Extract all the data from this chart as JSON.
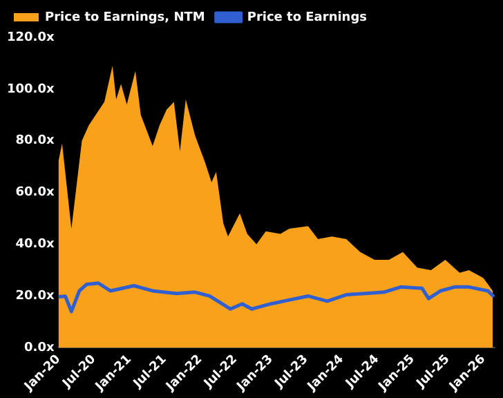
{
  "chart_data": {
    "type": "area",
    "legend": "top left",
    "grid": false,
    "marker": "none",
    "xlim": [
      "2020-01-01",
      "2026-03-01"
    ],
    "xticks": [
      {
        "value": "2020-01-01",
        "label": "Jan-20"
      },
      {
        "value": "2020-07-01",
        "label": "Jul-20"
      },
      {
        "value": "2021-01-01",
        "label": "Jan-21"
      },
      {
        "value": "2021-07-01",
        "label": "Jul-21"
      },
      {
        "value": "2022-01-01",
        "label": "Jan-22"
      },
      {
        "value": "2022-07-01",
        "label": "Jul-22"
      },
      {
        "value": "2023-01-01",
        "label": "Jan-23"
      },
      {
        "value": "2023-07-01",
        "label": "Jul-23"
      },
      {
        "value": "2024-01-01",
        "label": "Jan-24"
      },
      {
        "value": "2024-07-01",
        "label": "Jul-24"
      },
      {
        "value": "2025-01-01",
        "label": "Jan-25"
      },
      {
        "value": "2025-07-01",
        "label": "Jul-25"
      },
      {
        "value": "2026-01-01",
        "label": "Jan-26"
      }
    ],
    "ylim": [
      0,
      120
    ],
    "yticks": [
      {
        "value": 0,
        "label": "0.0x"
      },
      {
        "value": 20,
        "label": "20.0x"
      },
      {
        "value": 40,
        "label": "40.0x"
      },
      {
        "value": 60,
        "label": "60.0x"
      },
      {
        "value": 80,
        "label": "80.0x"
      },
      {
        "value": 100,
        "label": "100.0x"
      },
      {
        "value": 120,
        "label": "120.0x"
      }
    ],
    "series": [
      {
        "name": "Price to Earnings, NTM",
        "type": "area",
        "color": "#f9a11b",
        "x": [
          "2020-01-01",
          "2020-01-20",
          "2020-03-08",
          "2020-05-01",
          "2020-06-06",
          "2020-08-25",
          "2020-10-06",
          "2020-10-25",
          "2020-11-19",
          "2020-12-19",
          "2021-02-01",
          "2021-03-01",
          "2021-05-01",
          "2021-06-06",
          "2021-07-12",
          "2021-08-19",
          "2021-09-19",
          "2021-10-19",
          "2021-12-06",
          "2022-01-25",
          "2022-03-01",
          "2022-03-25",
          "2022-05-01",
          "2022-05-25",
          "2022-07-25",
          "2022-09-01",
          "2022-10-19",
          "2022-12-06",
          "2023-02-19",
          "2023-04-06",
          "2023-07-12",
          "2023-09-01",
          "2023-11-12",
          "2024-01-25",
          "2024-04-06",
          "2024-06-19",
          "2024-09-01",
          "2024-11-12",
          "2025-01-25",
          "2025-04-06",
          "2025-06-19",
          "2025-09-01",
          "2025-10-19",
          "2026-01-01",
          "2026-02-19"
        ],
        "values": [
          72,
          79,
          46,
          80,
          86,
          95,
          109,
          96,
          102,
          94,
          107,
          90,
          78,
          86,
          92,
          95,
          76,
          96,
          82,
          72,
          64,
          68,
          48,
          43,
          52,
          44,
          40,
          45,
          44,
          46,
          47,
          42,
          43,
          42,
          37,
          34,
          34,
          37,
          31,
          30,
          34,
          29,
          30,
          27,
          22
        ]
      },
      {
        "name": "Price to Earnings",
        "type": "line",
        "color": "#2f5fd0",
        "x": [
          "2020-01-01",
          "2020-02-06",
          "2020-03-08",
          "2020-04-18",
          "2020-05-25",
          "2020-07-25",
          "2020-09-25",
          "2021-01-25",
          "2021-05-01",
          "2021-09-01",
          "2021-12-06",
          "2022-02-19",
          "2022-06-06",
          "2022-08-06",
          "2022-09-25",
          "2023-01-01",
          "2023-04-06",
          "2023-07-12",
          "2023-10-19",
          "2024-01-25",
          "2024-05-01",
          "2024-08-06",
          "2024-11-01",
          "2025-02-19",
          "2025-03-25",
          "2025-05-25",
          "2025-08-06",
          "2025-10-19",
          "2026-01-25",
          "2026-02-25"
        ],
        "values": [
          19.7,
          19.9,
          14,
          22,
          24.5,
          25,
          22,
          24,
          22,
          21,
          21.5,
          20,
          15,
          17,
          15,
          17,
          18.5,
          20,
          18,
          20.5,
          21,
          21.5,
          23.5,
          23,
          19,
          22,
          23.5,
          23.5,
          22,
          19.7
        ]
      }
    ]
  }
}
